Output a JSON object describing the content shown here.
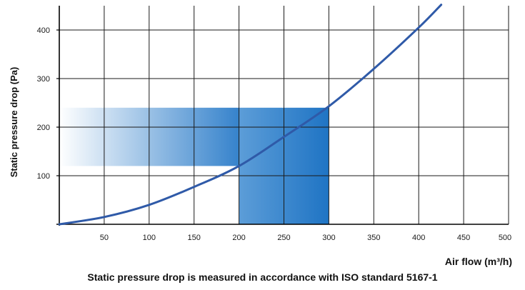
{
  "chart_data": {
    "type": "line",
    "title": "",
    "xlabel": "Air flow (m³/h)",
    "ylabel": "Static pressure drop (Pa)",
    "caption": "Static pressure drop is measured in accordance with ISO standard 5167-1",
    "xlim": [
      0,
      500
    ],
    "ylim": [
      0,
      450
    ],
    "x_ticks": [
      50,
      100,
      150,
      200,
      250,
      300,
      350,
      400,
      450,
      500
    ],
    "y_ticks": [
      100,
      200,
      300,
      400
    ],
    "grid": true,
    "series": [
      {
        "color": "#2f5aa8",
        "x": [
          0,
          50,
          100,
          150,
          200,
          250,
          300,
          350,
          400,
          425
        ],
        "y": [
          0,
          15,
          40,
          77,
          120,
          180,
          243,
          320,
          405,
          452
        ]
      }
    ],
    "highlight": {
      "x_range": [
        200,
        300
      ],
      "y_range": [
        120,
        240
      ],
      "color": "#2b7cc9"
    }
  }
}
